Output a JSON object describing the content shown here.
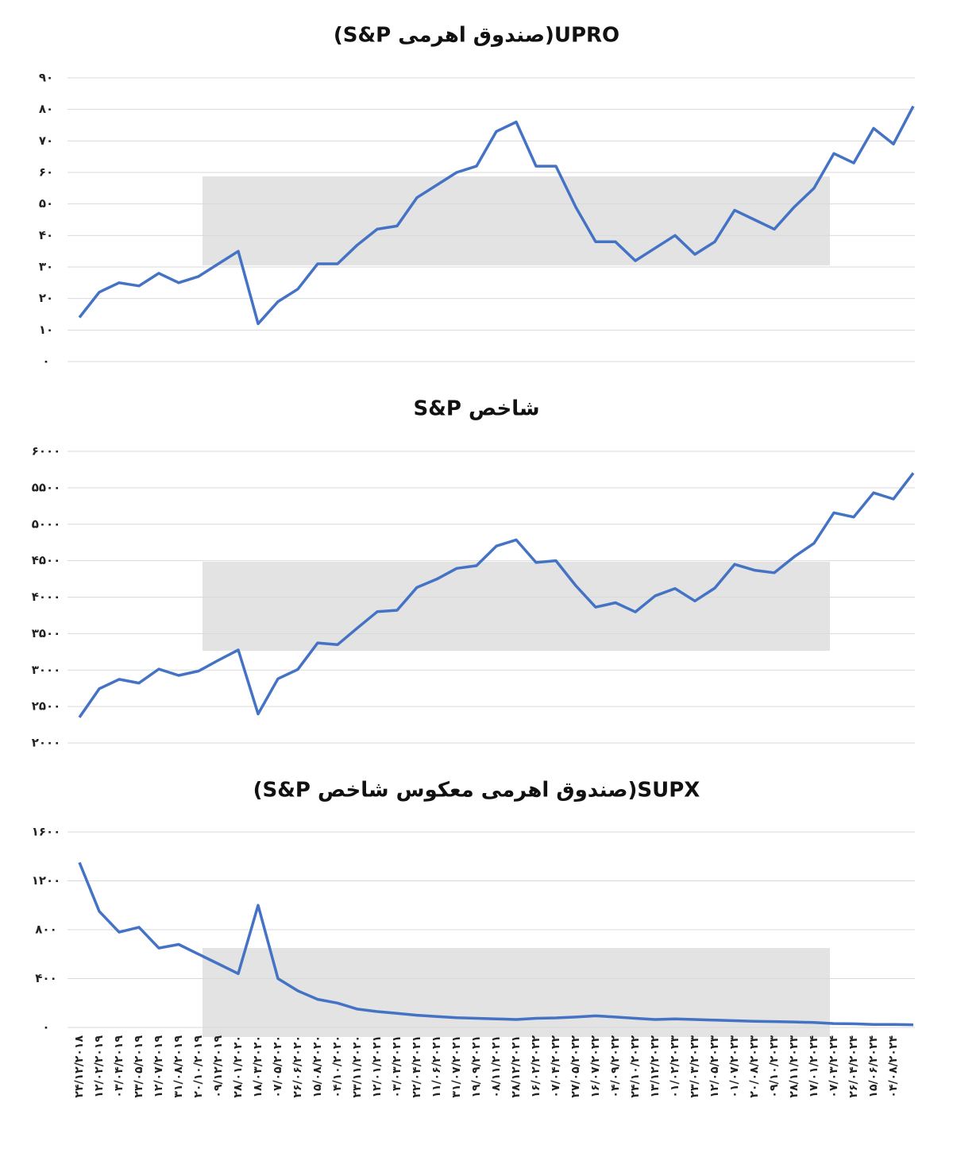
{
  "chart_data": [
    {
      "type": "line",
      "title": "UPRO(صندوق اهرمی S&P)",
      "color": "#4472c4",
      "grid": true,
      "ylim": [
        0,
        90
      ],
      "yticks": [
        {
          "value": 0,
          "label": "۰"
        },
        {
          "value": 10,
          "label": "۱۰"
        },
        {
          "value": 20,
          "label": "۲۰"
        },
        {
          "value": 30,
          "label": "۳۰"
        },
        {
          "value": 40,
          "label": "۴۰"
        },
        {
          "value": 50,
          "label": "۵۰"
        },
        {
          "value": 60,
          "label": "۶۰"
        },
        {
          "value": 70,
          "label": "۷۰"
        },
        {
          "value": 80,
          "label": "۸۰"
        },
        {
          "value": 90,
          "label": "۹۰"
        }
      ],
      "values": [
        14,
        22,
        25,
        24,
        28,
        25,
        27,
        31,
        35,
        12,
        19,
        23,
        31,
        31,
        37,
        42,
        43,
        52,
        56,
        60,
        62,
        73,
        76,
        62,
        62,
        49,
        38,
        38,
        32,
        36,
        40,
        34,
        38,
        48,
        45,
        42,
        49,
        55,
        66,
        63,
        74,
        69,
        81
      ]
    },
    {
      "type": "line",
      "title": "شاخص S&P",
      "color": "#4472c4",
      "grid": true,
      "ylim": [
        2000,
        6000
      ],
      "yticks": [
        {
          "value": 2000,
          "label": "۲۰۰۰"
        },
        {
          "value": 2500,
          "label": "۲۵۰۰"
        },
        {
          "value": 3000,
          "label": "۳۰۰۰"
        },
        {
          "value": 3500,
          "label": "۳۵۰۰"
        },
        {
          "value": 4000,
          "label": "۴۰۰۰"
        },
        {
          "value": 4500,
          "label": "۴۵۰۰"
        },
        {
          "value": 5000,
          "label": "۵۰۰۰"
        },
        {
          "value": 5500,
          "label": "۵۵۰۰"
        },
        {
          "value": 6000,
          "label": "۶۰۰۰"
        }
      ],
      "values": [
        2351,
        2744,
        2873,
        2822,
        3014,
        2926,
        2986,
        3135,
        3276,
        2398,
        2881,
        3009,
        3372,
        3348,
        3577,
        3801,
        3820,
        4134,
        4247,
        4395,
        4432,
        4701,
        4786,
        4475,
        4500,
        4158,
        3863,
        3924,
        3797,
        4019,
        4119,
        3948,
        4124,
        4450,
        4370,
        4335,
        4554,
        4739,
        5157,
        5099,
        5431,
        5346,
        5702
      ]
    },
    {
      "type": "line",
      "title": "SUPX(صندوق اهرمی معکوس شاخص S&P)",
      "color": "#4472c4",
      "grid": true,
      "ylim": [
        0,
        1600
      ],
      "yticks": [
        {
          "value": 0,
          "label": "۰"
        },
        {
          "value": 400,
          "label": "۴۰۰"
        },
        {
          "value": 800,
          "label": "۸۰۰"
        },
        {
          "value": 1200,
          "label": "۱۲۰۰"
        },
        {
          "value": 1600,
          "label": "۱۶۰۰"
        }
      ],
      "categories": [
        "۲۴/۱۲/۲۰۱۸",
        "۱۲/۰۲/۲۰۱۹",
        "۰۳/۰۴/۲۰۱۹",
        "۲۳/۰۵/۲۰۱۹",
        "۱۲/۰۷/۲۰۱۹",
        "۳۱/۰۸/۲۰۱۹",
        "۲۰/۱۰/۲۰۱۹",
        "۰۹/۱۲/۲۰۱۹",
        "۲۸/۰۱/۲۰۲۰",
        "۱۸/۰۳/۲۰۲۰",
        "۰۷/۰۵/۲۰۲۰",
        "۲۶/۰۶/۲۰۲۰",
        "۱۵/۰۸/۲۰۲۰",
        "۰۴/۱۰/۲۰۲۰",
        "۲۳/۱۱/۲۰۲۰",
        "۱۲/۰۱/۲۰۲۱",
        "۰۳/۰۳/۲۰۲۱",
        "۲۲/۰۴/۲۰۲۱",
        "۱۱/۰۶/۲۰۲۱",
        "۳۱/۰۷/۲۰۲۱",
        "۱۹/۰۹/۲۰۲۱",
        "۰۸/۱۱/۲۰۲۱",
        "۲۸/۱۲/۲۰۲۱",
        "۱۶/۰۲/۲۰۲۲",
        "۰۷/۰۴/۲۰۲۲",
        "۲۷/۰۵/۲۰۲۲",
        "۱۶/۰۷/۲۰۲۲",
        "۰۴/۰۹/۲۰۲۲",
        "۲۴/۱۰/۲۰۲۲",
        "۱۳/۱۲/۲۰۲۲",
        "۰۱/۰۲/۲۰۲۳",
        "۲۳/۰۳/۲۰۲۳",
        "۱۲/۰۵/۲۰۲۳",
        "۰۱/۰۷/۲۰۲۳",
        "۲۰/۰۸/۲۰۲۳",
        "۰۹/۱۰/۲۰۲۳",
        "۲۸/۱۱/۲۰۲۳",
        "۱۷/۰۱/۲۰۲۴",
        "۰۷/۰۳/۲۰۲۴",
        "۲۶/۰۴/۲۰۲۴",
        "۱۵/۰۶/۲۰۲۴",
        "۰۴/۰۸/۲۰۲۴",
        null
      ],
      "values": [
        1350,
        950,
        780,
        820,
        650,
        680,
        600,
        520,
        440,
        1000,
        400,
        300,
        230,
        200,
        150,
        130,
        115,
        100,
        90,
        80,
        75,
        70,
        65,
        75,
        78,
        85,
        95,
        85,
        75,
        65,
        70,
        65,
        60,
        55,
        50,
        48,
        45,
        40,
        32,
        30,
        25,
        24,
        22
      ]
    }
  ]
}
